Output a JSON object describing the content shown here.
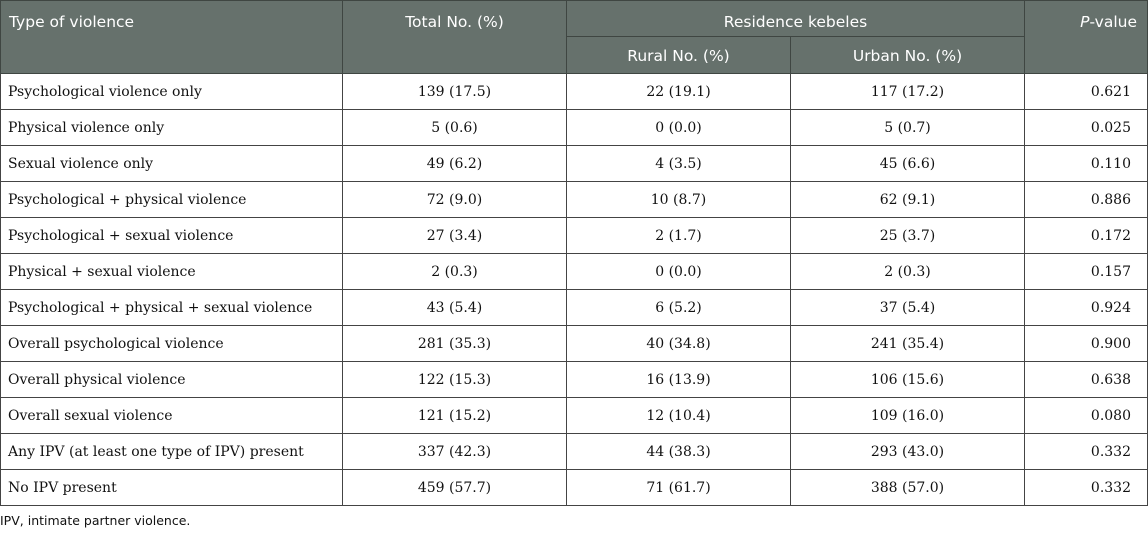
{
  "headers": {
    "type": "Type of violence",
    "total": "Total No. (%)",
    "residence": "Residence kebeles",
    "rural": "Rural No. (%)",
    "urban": "Urban No. (%)",
    "pvalue_italic": "P",
    "pvalue_rest": "-value"
  },
  "rows": [
    {
      "type": "Psychological violence only",
      "total": "139 (17.5)",
      "rural": "22 (19.1)",
      "urban": "117 (17.2)",
      "p": "0.621"
    },
    {
      "type": "Physical violence only",
      "total": "5 (0.6)",
      "rural": "0 (0.0)",
      "urban": "5 (0.7)",
      "p": "0.025"
    },
    {
      "type": "Sexual violence only",
      "total": "49 (6.2)",
      "rural": "4 (3.5)",
      "urban": "45 (6.6)",
      "p": "0.110"
    },
    {
      "type": "Psychological + physical violence",
      "total": "72 (9.0)",
      "rural": "10 (8.7)",
      "urban": "62 (9.1)",
      "p": "0.886"
    },
    {
      "type": "Psychological + sexual violence",
      "total": "27 (3.4)",
      "rural": "2 (1.7)",
      "urban": "25 (3.7)",
      "p": "0.172"
    },
    {
      "type": "Physical + sexual violence",
      "total": "2 (0.3)",
      "rural": "0 (0.0)",
      "urban": "2 (0.3)",
      "p": "0.157"
    },
    {
      "type": "Psychological + physical + sexual violence",
      "total": "43 (5.4)",
      "rural": "6 (5.2)",
      "urban": "37 (5.4)",
      "p": "0.924"
    },
    {
      "type": "Overall psychological violence",
      "total": "281 (35.3)",
      "rural": "40 (34.8)",
      "urban": "241 (35.4)",
      "p": "0.900"
    },
    {
      "type": "Overall physical violence",
      "total": "122 (15.3)",
      "rural": "16 (13.9)",
      "urban": "106 (15.6)",
      "p": "0.638"
    },
    {
      "type": "Overall sexual violence",
      "total": "121 (15.2)",
      "rural": "12 (10.4)",
      "urban": "109 (16.0)",
      "p": "0.080"
    },
    {
      "type": "Any IPV (at least one type of IPV) present",
      "total": "337 (42.3)",
      "rural": "44 (38.3)",
      "urban": "293 (43.0)",
      "p": "0.332"
    },
    {
      "type": "No IPV present",
      "total": "459 (57.7)",
      "rural": "71 (61.7)",
      "urban": "388 (57.0)",
      "p": "0.332"
    }
  ],
  "footnote": "IPV, intimate partner violence."
}
